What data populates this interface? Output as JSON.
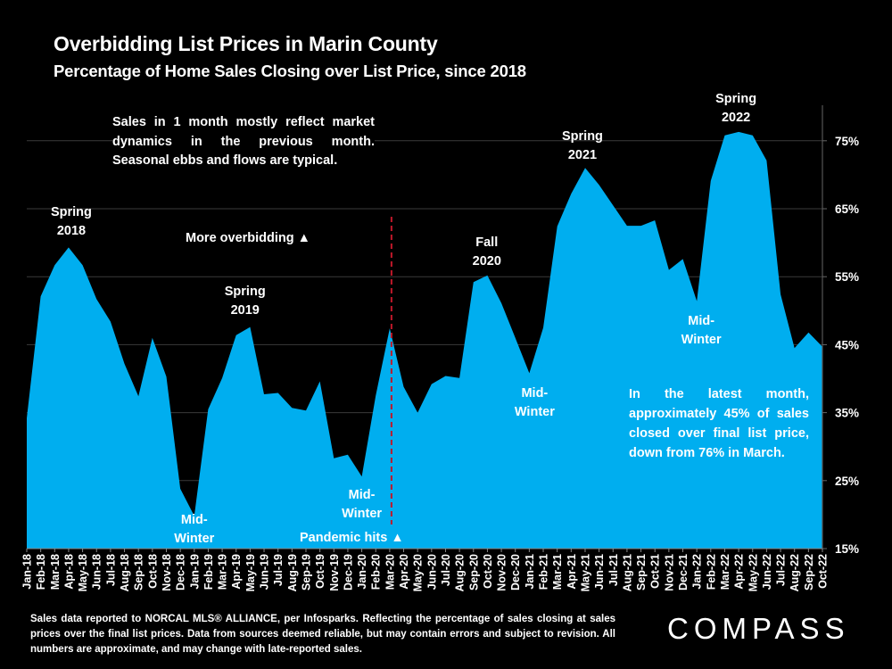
{
  "title": "Overbidding List Prices in Marin County",
  "subtitle": "Percentage of Home Sales Closing over List Price, since 2018",
  "notes": {
    "top_left": "Sales in 1 month mostly reflect market dynamics in the previous month. Seasonal ebbs and flows are typical.",
    "latest": "In the latest month, approximately 45% of sales closed over final list price, down from 76% in March.",
    "more_overbidding": "More overbidding ▲",
    "pandemic": "Pandemic hits ▲"
  },
  "footer": "Sales data reported to NORCAL MLS® ALLIANCE, per Infosparks. Reflecting the percentage of sales closing at sales prices over the final list prices. Data from sources deemed reliable, but may contain errors and subject to revision. All numbers are approximate, and may change with late-reported sales.",
  "brand": {
    "logo_text": "COMPASS",
    "fill_color": "#00AEEF",
    "marker_color": "#C0182A"
  },
  "chart_data": {
    "type": "area",
    "title": "Overbidding List Prices in Marin County",
    "subtitle": "Percentage of Home Sales Closing over List Price, since 2018",
    "xlabel": "",
    "ylabel": "",
    "ylim": [
      15,
      80
    ],
    "yticks": [
      15,
      25,
      35,
      45,
      55,
      65,
      75
    ],
    "ytick_labels": [
      "15%",
      "25%",
      "35%",
      "45%",
      "55%",
      "65%",
      "75%"
    ],
    "grid": true,
    "categories": [
      "Jan-18",
      "Feb-18",
      "Mar-18",
      "Apr-18",
      "May-18",
      "Jun-18",
      "Jul-18",
      "Aug-18",
      "Sep-18",
      "Oct-18",
      "Nov-18",
      "Dec-18",
      "Jan-19",
      "Feb-19",
      "Mar-19",
      "Apr-19",
      "May-19",
      "Jun-19",
      "Jul-19",
      "Aug-19",
      "Sep-19",
      "Oct-19",
      "Nov-19",
      "Dec-19",
      "Jan-20",
      "Feb-20",
      "Mar-20",
      "Apr-20",
      "May-20",
      "Jun-20",
      "Jul-20",
      "Aug-20",
      "Sep-20",
      "Oct-20",
      "Nov-20",
      "Dec-20",
      "Jan-21",
      "Feb-21",
      "Mar-21",
      "Apr-21",
      "May-21",
      "Jun-21",
      "Jul-21",
      "Aug-21",
      "Sep-21",
      "Oct-21",
      "Nov-21",
      "Dec-21",
      "Jan-22",
      "Feb-22",
      "Mar-22",
      "Apr-22",
      "May-22",
      "Jun-22",
      "Jul-22",
      "Aug-22",
      "Sep-22",
      "Oct-22"
    ],
    "series": [
      {
        "name": "% of sales over list price",
        "values": [
          34.2,
          52.1,
          56.7,
          59.3,
          56.7,
          51.7,
          48.4,
          42.2,
          37.4,
          46.0,
          40.3,
          23.8,
          19.8,
          35.5,
          40.1,
          46.4,
          47.6,
          37.7,
          37.9,
          35.7,
          35.3,
          39.6,
          28.3,
          28.8,
          25.6,
          37.5,
          47.4,
          38.8,
          35.0,
          39.2,
          40.4,
          40.1,
          54.2,
          55.2,
          51.1,
          46.0,
          40.8,
          47.5,
          62.4,
          67.2,
          71.0,
          68.5,
          65.5,
          62.5,
          62.5,
          63.3,
          56.0,
          57.6,
          51.4,
          69.1,
          75.8,
          76.3,
          75.8,
          72.1,
          52.4,
          44.5,
          46.8,
          44.7
        ]
      }
    ],
    "annotations": [
      {
        "text": [
          "Spring",
          "2018"
        ],
        "at": "Apr-18",
        "position": "above"
      },
      {
        "text": [
          "Mid-",
          "Winter"
        ],
        "at": "Jan-19",
        "position": "below"
      },
      {
        "text": [
          "Spring",
          "2019"
        ],
        "at": "Apr-19",
        "position": "above"
      },
      {
        "text": [
          "Mid-",
          "Winter"
        ],
        "at": "Jan-20",
        "position": "below"
      },
      {
        "text": [
          "Fall",
          "2020"
        ],
        "at": "Sep-20",
        "position": "above"
      },
      {
        "text": [
          "Mid-",
          "Winter"
        ],
        "at": "Jan-21",
        "position": "below"
      },
      {
        "text": [
          "Spring",
          "2021"
        ],
        "at": "May-21",
        "position": "above"
      },
      {
        "text": [
          "Mid-",
          "Winter"
        ],
        "at": "Jan-22",
        "position": "below"
      },
      {
        "text": [
          "Spring",
          "2022"
        ],
        "at": "Apr-22",
        "position": "above"
      }
    ],
    "vertical_marker": {
      "at": "Mar-20",
      "label": "Pandemic hits ▲",
      "style": "dashed"
    },
    "legend": "none"
  }
}
